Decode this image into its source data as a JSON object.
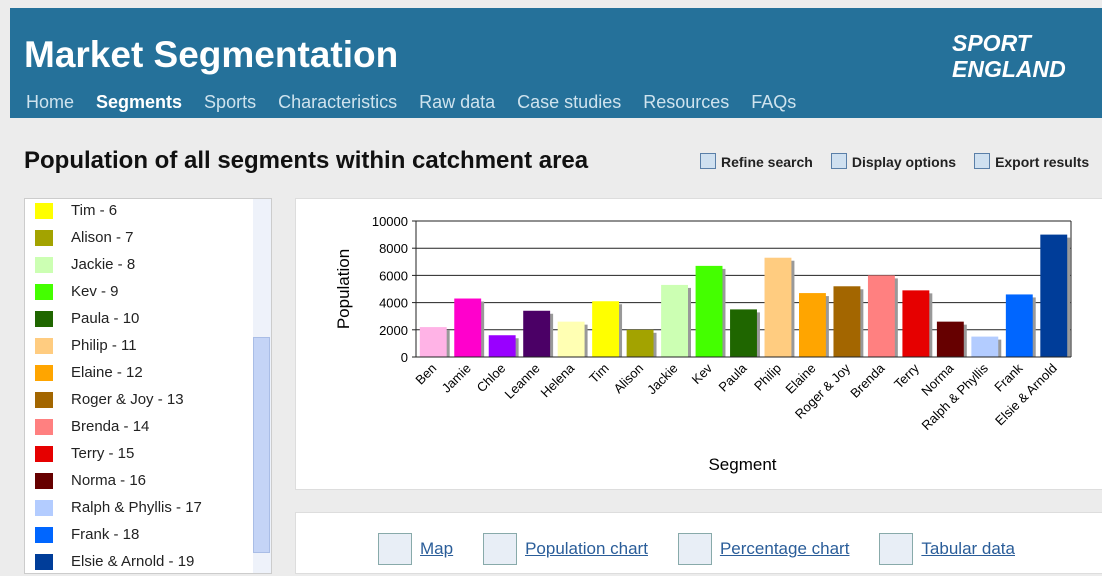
{
  "header": {
    "title": "Market Segmentation",
    "logo": [
      "SPORT",
      "ENGLAND"
    ],
    "nav": [
      "Home",
      "Segments",
      "Sports",
      "Characteristics",
      "Raw data",
      "Case studies",
      "Resources",
      "FAQs"
    ],
    "active_nav": 1
  },
  "page_title": "Population of all segments within catchment area",
  "toolbar": [
    "Refine search",
    "Display options",
    "Export results"
  ],
  "legend": {
    "items": [
      {
        "label": "Tim - 6",
        "color": "#ffff00"
      },
      {
        "label": "Alison - 7",
        "color": "#a3a300"
      },
      {
        "label": "Jackie - 8",
        "color": "#ccffb3"
      },
      {
        "label": "Kev - 9",
        "color": "#44ff00"
      },
      {
        "label": "Paula - 10",
        "color": "#1f6600"
      },
      {
        "label": "Philip - 11",
        "color": "#ffcc80"
      },
      {
        "label": "Elaine - 12",
        "color": "#ffa500"
      },
      {
        "label": "Roger & Joy - 13",
        "color": "#a36600"
      },
      {
        "label": "Brenda - 14",
        "color": "#ff8080"
      },
      {
        "label": "Terry - 15",
        "color": "#e60000"
      },
      {
        "label": "Norma - 16",
        "color": "#660000"
      },
      {
        "label": "Ralph & Phyllis - 17",
        "color": "#b3ccff"
      },
      {
        "label": "Frank - 18",
        "color": "#0066ff"
      },
      {
        "label": "Elsie & Arnold - 19",
        "color": "#003d99"
      }
    ]
  },
  "chart_data": {
    "type": "bar",
    "x_label": "Segment",
    "y_label": "Population",
    "categories": [
      "Ben",
      "Jamie",
      "Chloe",
      "Leanne",
      "Helena",
      "Tim",
      "Alison",
      "Jackie",
      "Kev",
      "Paula",
      "Philip",
      "Elaine",
      "Roger & Joy",
      "Brenda",
      "Terry",
      "Norma",
      "Ralph & Phyllis",
      "Frank",
      "Elsie & Arnold"
    ],
    "values": [
      2200,
      4300,
      1600,
      3400,
      2600,
      4100,
      2000,
      5300,
      6700,
      3500,
      7300,
      4700,
      5200,
      6000,
      4900,
      2600,
      1500,
      4600,
      9000
    ],
    "colors": [
      "#ffb3e6",
      "#ff00cc",
      "#9900ff",
      "#4b0066",
      "#ffffb3",
      "#ffff00",
      "#a3a300",
      "#ccffb3",
      "#44ff00",
      "#1f6600",
      "#ffcc80",
      "#ffa500",
      "#a36600",
      "#ff8080",
      "#e60000",
      "#660000",
      "#b3ccff",
      "#0066ff",
      "#003d99"
    ],
    "ylim": [
      0,
      10000
    ],
    "yticks": [
      0,
      2000,
      4000,
      6000,
      8000,
      10000
    ],
    "grid": true
  },
  "bottom_links": [
    "Map",
    "Population chart",
    "Percentage chart",
    "Tabular data"
  ]
}
